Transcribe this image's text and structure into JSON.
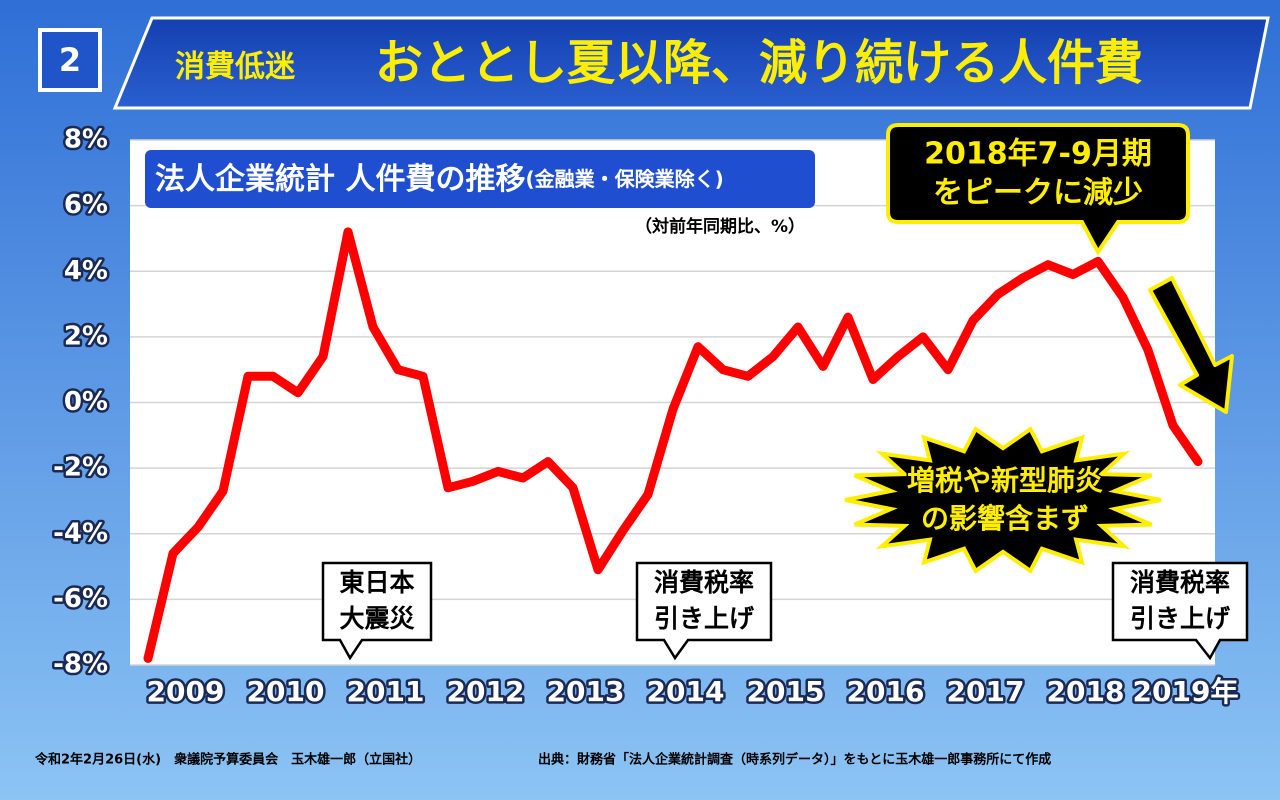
{
  "header": {
    "number": "2",
    "title_small": "消費低迷",
    "title": "おととし夏以降、減り続ける人件費"
  },
  "chart_data": {
    "type": "line",
    "title": "法人企業統計 人件費の推移",
    "subtitle": "(金融業・保険業除く)",
    "unit_note": "（対前年同期比、%）",
    "x": [
      2009,
      2009.25,
      2009.5,
      2009.75,
      2010,
      2010.25,
      2010.5,
      2010.75,
      2011,
      2011.25,
      2011.5,
      2011.75,
      2012,
      2012.25,
      2012.5,
      2012.75,
      2013,
      2013.25,
      2013.5,
      2013.75,
      2014,
      2014.25,
      2014.5,
      2014.75,
      2015,
      2015.25,
      2015.5,
      2015.75,
      2016,
      2016.25,
      2016.5,
      2016.75,
      2017,
      2017.25,
      2017.5,
      2017.75,
      2018,
      2018.25,
      2018.5,
      2018.75,
      2019,
      2019.25,
      2019.5
    ],
    "values": [
      -7.8,
      -4.6,
      -3.8,
      -2.7,
      0.8,
      0.8,
      0.3,
      1.4,
      5.2,
      2.3,
      1.0,
      0.8,
      -2.6,
      -2.4,
      -2.1,
      -2.3,
      -1.8,
      -2.6,
      -5.1,
      -3.9,
      -2.8,
      -0.2,
      1.7,
      1.0,
      0.8,
      1.4,
      2.3,
      1.1,
      2.6,
      0.7,
      1.4,
      2.0,
      1.0,
      2.5,
      3.3,
      3.8,
      4.2,
      3.9,
      4.3,
      3.2,
      1.6,
      -0.7,
      -1.8
    ],
    "color": "#ff0000",
    "xlim": [
      2008.82,
      2019.67
    ],
    "ylim": [
      -8,
      8
    ],
    "xticks": [
      2009,
      2010,
      2011,
      2012,
      2013,
      2014,
      2015,
      2016,
      2017,
      2018,
      {
        "value": 2019,
        "label": "2019年"
      }
    ],
    "yticks": [
      {
        "value": -8,
        "label": "-8%"
      },
      {
        "value": -6,
        "label": "-6%"
      },
      {
        "value": -4,
        "label": "-4%"
      },
      {
        "value": -2,
        "label": "-2%"
      },
      {
        "value": 0,
        "label": "0%"
      },
      {
        "value": 2,
        "label": "2%"
      },
      {
        "value": 4,
        "label": "4%"
      },
      {
        "value": 6,
        "label": "6%"
      },
      {
        "value": 8,
        "label": "8%"
      }
    ],
    "grid": true,
    "annotations": {
      "peak": [
        "2018年7-9月期",
        "をピークに減少"
      ],
      "burst": [
        "増税や新型肺炎",
        "の影響含まず"
      ],
      "quake": [
        "東日本",
        "大震災"
      ],
      "tax1": [
        "消費税率",
        "引き上げ"
      ],
      "tax2": [
        "消費税率",
        "引き上げ"
      ]
    }
  },
  "footer": {
    "left": "令和2年2月26日(水)　衆議院予算委員会　玉木雄一郎（立国社）",
    "source": "出典：財務省「法人企業統計調査（時系列データ）」をもとに玉木雄一郎事務所にて作成"
  }
}
